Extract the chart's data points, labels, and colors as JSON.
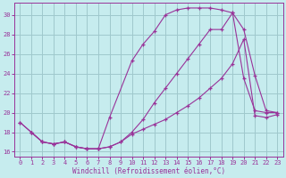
{
  "xlabel": "Windchill (Refroidissement éolien,°C)",
  "xlim": [
    -0.5,
    23.5
  ],
  "ylim": [
    15.5,
    31.2
  ],
  "yticks": [
    16,
    18,
    20,
    22,
    24,
    26,
    28,
    30
  ],
  "xticks": [
    0,
    1,
    2,
    3,
    4,
    5,
    6,
    7,
    8,
    9,
    10,
    11,
    12,
    13,
    14,
    15,
    16,
    17,
    18,
    19,
    20,
    21,
    22,
    23
  ],
  "bg_color": "#c6ecee",
  "grid_color": "#9fc8cc",
  "line_color": "#993399",
  "line1_x": [
    0,
    1,
    2,
    3,
    4,
    5,
    6,
    7,
    8,
    10,
    11,
    12,
    13,
    14,
    15,
    16,
    17,
    18,
    19,
    20,
    21,
    22,
    23
  ],
  "line1_y": [
    19,
    18,
    17,
    16.8,
    17,
    16.5,
    16.3,
    16.3,
    19.5,
    25.3,
    27.0,
    28.3,
    30.0,
    30.5,
    30.7,
    30.7,
    30.7,
    30.5,
    30.2,
    23.5,
    20.2,
    20.0,
    20.0
  ],
  "line2_x": [
    0,
    1,
    2,
    3,
    4,
    5,
    6,
    7,
    8,
    9,
    10,
    11,
    12,
    13,
    14,
    15,
    16,
    17,
    18,
    19,
    20,
    21,
    22,
    23
  ],
  "line2_y": [
    19,
    18,
    17,
    16.8,
    17,
    16.5,
    16.3,
    16.3,
    16.5,
    17.0,
    18.0,
    19.3,
    21.0,
    22.5,
    24.0,
    25.5,
    27.0,
    28.5,
    28.5,
    30.2,
    28.5,
    23.8,
    20.2,
    20.0
  ],
  "line3_x": [
    1,
    2,
    3,
    4,
    5,
    6,
    7,
    8,
    9,
    10,
    11,
    12,
    13,
    14,
    15,
    16,
    17,
    18,
    19,
    20,
    21,
    22,
    23
  ],
  "line3_y": [
    18,
    17,
    16.8,
    17,
    16.5,
    16.3,
    16.3,
    16.5,
    17.0,
    17.8,
    18.3,
    18.8,
    19.3,
    20.0,
    20.7,
    21.5,
    22.5,
    23.5,
    25.0,
    27.5,
    19.7,
    19.5,
    19.8
  ]
}
